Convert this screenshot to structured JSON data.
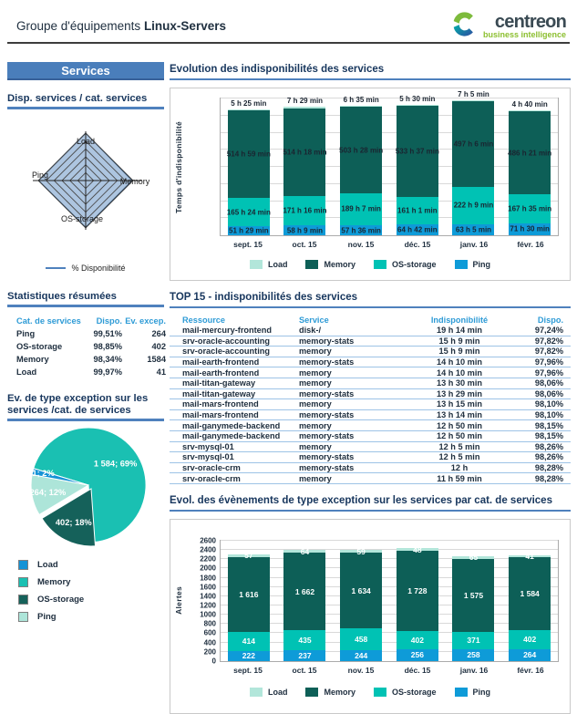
{
  "header": {
    "group_label": "Groupe d'équipements",
    "group_name": "Linux-Servers",
    "logo_text": "centreon",
    "logo_subtext": "business intelligence"
  },
  "colors": {
    "accent_blue": "#4F81BD",
    "title_navy": "#17365D",
    "table_header_blue": "#2E9BD6",
    "memory": "#0D5F57",
    "os_storage": "#00C2B4",
    "ping": "#0E9BD8",
    "load": "#B2E6DA",
    "pie_memory": "#1AC0B2",
    "pie_os_storage": "#15615A",
    "pie_ping": "#ADE5D9",
    "pie_load": "#1593D6",
    "radar_fill": "#A9C2DE",
    "logo_green": "#7DBB3C",
    "logo_blue": "#2B55A2"
  },
  "sidebar": {
    "banner": "Services",
    "radar_section": {
      "title": "Disp. services / cat. services",
      "legend": "% Disponibilité"
    },
    "stats_section": {
      "title": "Statistiques résumées",
      "headers": [
        "Cat. de services",
        "Dispo.",
        "Ev. excep."
      ],
      "rows": [
        [
          "Ping",
          "99,51%",
          "264"
        ],
        [
          "OS-storage",
          "98,85%",
          "402"
        ],
        [
          "Memory",
          "98,34%",
          "1584"
        ],
        [
          "Load",
          "99,97%",
          "41"
        ]
      ]
    },
    "pie_section": {
      "title": "Ev. de type exception sur les services /cat. de services"
    }
  },
  "main": {
    "sections": {
      "availability_title": "Evolution des indisponibilités des services",
      "top15_title": "TOP 15 - indisponibilités des services",
      "events_title": "Evol. des évènements de type exception sur les services par cat. de services"
    },
    "top15": {
      "headers": [
        "Ressource",
        "Service",
        "Indisponibilité",
        "Dispo."
      ],
      "rows": [
        [
          "mail-mercury-frontend",
          "disk-/",
          "19 h 14 min",
          "97,24%"
        ],
        [
          "srv-oracle-accounting",
          "memory-stats",
          "15 h 9 min",
          "97,82%"
        ],
        [
          "srv-oracle-accounting",
          "memory",
          "15 h 9 min",
          "97,82%"
        ],
        [
          "mail-earth-frontend",
          "memory-stats",
          "14 h 10 min",
          "97,96%"
        ],
        [
          "mail-earth-frontend",
          "memory",
          "14 h 10 min",
          "97,96%"
        ],
        [
          "mail-titan-gateway",
          "memory",
          "13 h 30 min",
          "98,06%"
        ],
        [
          "mail-titan-gateway",
          "memory-stats",
          "13 h 29 min",
          "98,06%"
        ],
        [
          "mail-mars-frontend",
          "memory",
          "13 h 15 min",
          "98,10%"
        ],
        [
          "mail-mars-frontend",
          "memory-stats",
          "13 h 14 min",
          "98,10%"
        ],
        [
          "mail-ganymede-backend",
          "memory",
          "12 h 50 min",
          "98,15%"
        ],
        [
          "mail-ganymede-backend",
          "memory-stats",
          "12 h 50 min",
          "98,15%"
        ],
        [
          "srv-mysql-01",
          "memory",
          "12 h 5 min",
          "98,26%"
        ],
        [
          "srv-mysql-01",
          "memory-stats",
          "12 h 5 min",
          "98,26%"
        ],
        [
          "srv-oracle-crm",
          "memory-stats",
          "12 h",
          "98,28%"
        ],
        [
          "srv-oracle-crm",
          "memory",
          "11 h 59 min",
          "98,28%"
        ]
      ]
    }
  },
  "chart_data": [
    {
      "id": "radar-availability",
      "type": "radar",
      "title": "Disp. services / cat. services",
      "axes": [
        "Load",
        "Memory",
        "OS-storage",
        "Ping"
      ],
      "series": [
        {
          "name": "% Disponibilité",
          "values": [
            99.97,
            98.34,
            98.85,
            99.51
          ]
        }
      ],
      "ylim": [
        0,
        100
      ]
    },
    {
      "id": "bars-unavailability",
      "type": "bar",
      "stacked": true,
      "title": "Evolution des indisponibilités des services",
      "ylabel": "Temps d'indisponibilité",
      "categories": [
        "sept. 15",
        "oct. 15",
        "nov. 15",
        "déc. 15",
        "janv. 16",
        "févr. 16"
      ],
      "ylim": [
        0,
        800
      ],
      "grid_step": 100,
      "show_tick_labels": false,
      "series": [
        {
          "name": "Ping",
          "color": "#0E9BD8",
          "values": [
            51.5,
            58.2,
            57.6,
            64.7,
            63.1,
            71.5
          ],
          "labels": [
            "51 h 29 min",
            "58 h 9 min",
            "57 h 36 min",
            "64 h 42 min",
            "63 h 5 min",
            "71 h 30 min"
          ],
          "label_style": "dark"
        },
        {
          "name": "OS-storage",
          "color": "#00C2B4",
          "values": [
            165.4,
            171.3,
            189.1,
            161.0,
            222.2,
            167.6
          ],
          "labels": [
            "165 h 24 min",
            "171 h 16 min",
            "189 h 7 min",
            "161 h 1 min",
            "222 h 9 min",
            "167 h 35 min"
          ],
          "label_style": "dark"
        },
        {
          "name": "Memory",
          "color": "#0D5F57",
          "values": [
            515.0,
            514.3,
            503.5,
            533.6,
            497.1,
            486.4
          ],
          "labels": [
            "514 h 59 min",
            "514 h 18 min",
            "503 h 28 min",
            "533 h 37 min",
            "497 h 6 min",
            "486 h 21 min"
          ],
          "label_style": "dark"
        },
        {
          "name": "Load",
          "color": "#B2E6DA",
          "values": [
            5.4,
            7.5,
            6.6,
            5.5,
            7.1,
            4.7
          ],
          "labels": [
            "5 h 25 min",
            "7 h 29 min",
            "6 h 35 min",
            "5 h 30 min",
            "7 h 5 min",
            "4 h 40 min"
          ],
          "label_style": "dark",
          "label_position": "above"
        }
      ],
      "legend": [
        {
          "name": "Load",
          "color": "#B2E6DA"
        },
        {
          "name": "Memory",
          "color": "#0D5F57"
        },
        {
          "name": "OS-storage",
          "color": "#00C2B4"
        },
        {
          "name": "Ping",
          "color": "#0E9BD8"
        }
      ]
    },
    {
      "id": "pie-exceptions",
      "type": "pie",
      "title": "Ev. de type exception sur les services /cat. de services",
      "start_angle": 287,
      "slices": [
        {
          "name": "Memory",
          "value": 1584,
          "pct": 69,
          "label": "1 584; 69%",
          "color": "#1AC0B2",
          "label_r": 0.6
        },
        {
          "name": "OS-storage",
          "value": 402,
          "pct": 18,
          "label": "402; 18%",
          "color": "#15615A",
          "label_r": 0.66,
          "explode": true
        },
        {
          "name": "Ping",
          "value": 264,
          "pct": 12,
          "label": "264; 12%",
          "color": "#ADE5D9",
          "label_r": 0.72
        },
        {
          "name": "Load",
          "value": 41,
          "pct": 2,
          "label": "41; 2%",
          "color": "#1593D6",
          "label_r": 0.85
        }
      ],
      "legend": [
        {
          "name": "Load",
          "color": "#1593D6"
        },
        {
          "name": "Memory",
          "color": "#1AC0B2"
        },
        {
          "name": "OS-storage",
          "color": "#15615A"
        },
        {
          "name": "Ping",
          "color": "#ADE5D9"
        }
      ]
    },
    {
      "id": "bars-exceptions",
      "type": "bar",
      "stacked": true,
      "title": "Evol. des évènements de type exception sur les services par cat. de services",
      "ylabel": "Alertes",
      "categories": [
        "sept. 15",
        "oct. 15",
        "nov. 15",
        "déc. 15",
        "janv. 16",
        "févr. 16"
      ],
      "ylim": [
        0,
        2600
      ],
      "grid_step": 200,
      "show_tick_labels": true,
      "series": [
        {
          "name": "Ping",
          "color": "#0E9BD8",
          "values": [
            222,
            237,
            244,
            256,
            258,
            264
          ],
          "labels": [
            "222",
            "237",
            "244",
            "256",
            "258",
            "264"
          ],
          "label_style": "light"
        },
        {
          "name": "OS-storage",
          "color": "#00C2B4",
          "values": [
            414,
            435,
            458,
            402,
            371,
            402
          ],
          "labels": [
            "414",
            "435",
            "458",
            "402",
            "371",
            "402"
          ],
          "label_style": "light"
        },
        {
          "name": "Memory",
          "color": "#0D5F57",
          "values": [
            1616,
            1662,
            1634,
            1728,
            1575,
            1584
          ],
          "labels": [
            "1 616",
            "1 662",
            "1 634",
            "1 728",
            "1 575",
            "1 584"
          ],
          "label_style": "light"
        },
        {
          "name": "Load",
          "color": "#B2E6DA",
          "values": [
            57,
            64,
            59,
            48,
            65,
            41
          ],
          "labels": [
            "57",
            "64",
            "59",
            "48",
            "65",
            "41"
          ],
          "label_style": "light"
        }
      ],
      "legend": [
        {
          "name": "Load",
          "color": "#B2E6DA"
        },
        {
          "name": "Memory",
          "color": "#0D5F57"
        },
        {
          "name": "OS-storage",
          "color": "#00C2B4"
        },
        {
          "name": "Ping",
          "color": "#0E9BD8"
        }
      ]
    }
  ]
}
